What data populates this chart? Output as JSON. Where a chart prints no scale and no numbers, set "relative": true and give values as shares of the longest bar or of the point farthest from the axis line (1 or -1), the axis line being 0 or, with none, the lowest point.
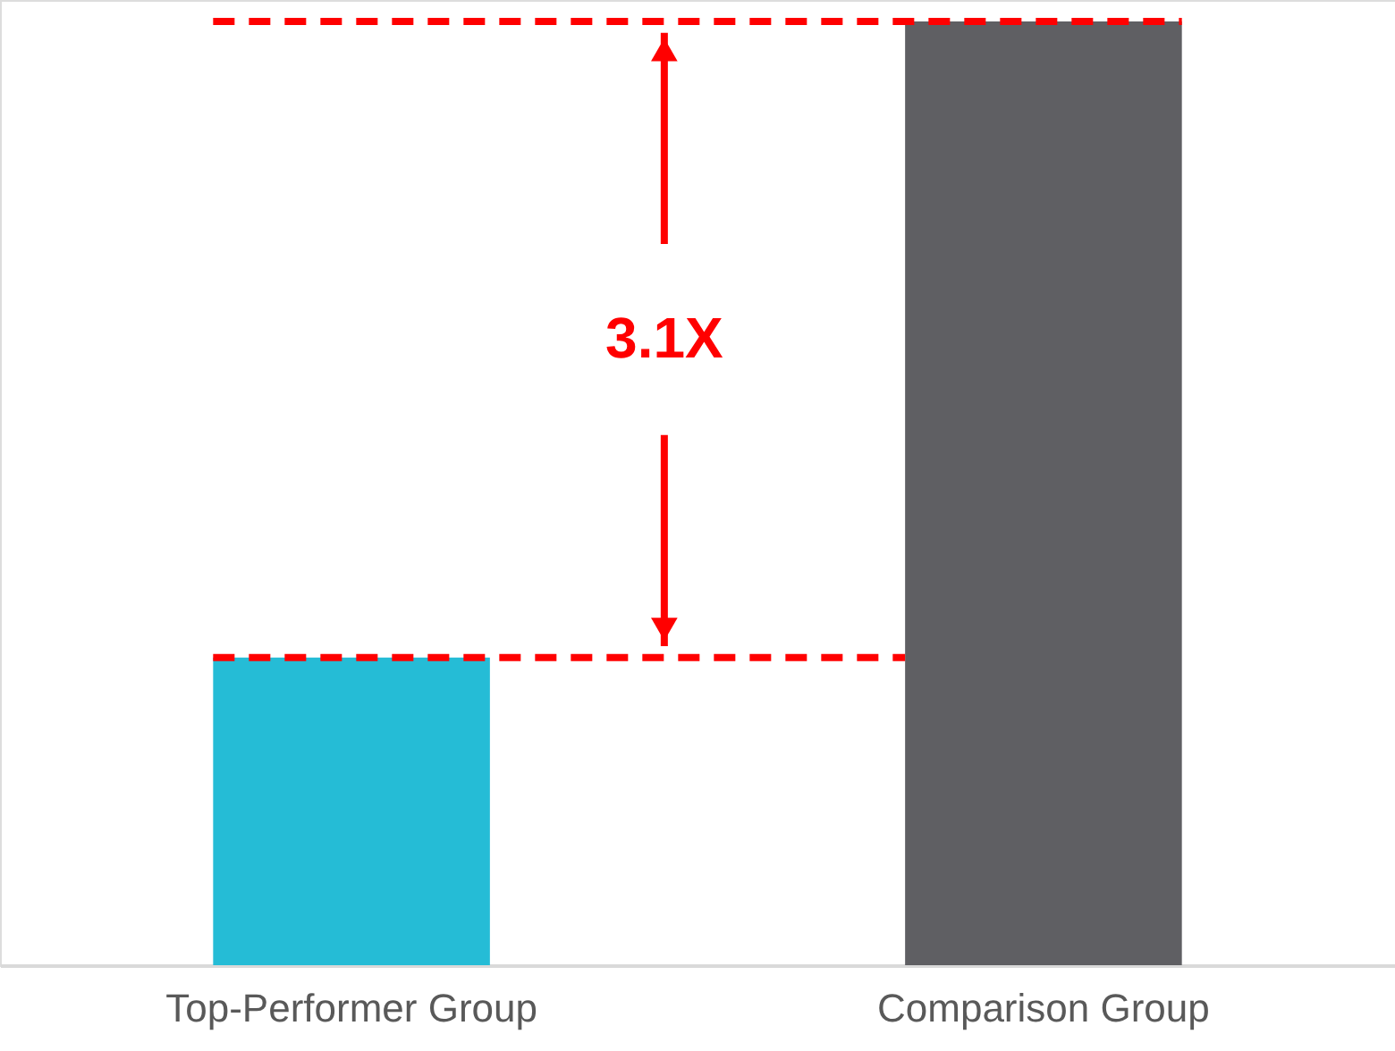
{
  "chart_data": {
    "type": "bar",
    "relative": true,
    "categories": [
      "Top-Performer Group",
      "Comparison Group"
    ],
    "values": [
      0.326,
      1
    ],
    "colors": [
      "#25bcd6",
      "#5f5f63"
    ],
    "ref_lines": [
      {
        "axis": "y",
        "value": 1,
        "color": "#ff0000",
        "line_style": "dashed"
      },
      {
        "axis": "y",
        "value": 0.326,
        "color": "#ff0000",
        "line_style": "dashed"
      }
    ],
    "annotations": [
      "3.1X"
    ],
    "grid": false
  }
}
